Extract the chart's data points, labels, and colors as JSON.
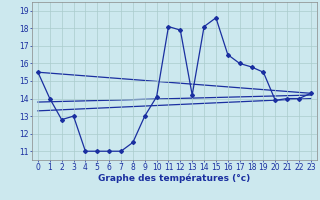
{
  "xlabel": "Graphe des températures (°c)",
  "background_color": "#cce8ee",
  "grid_color": "#aacccc",
  "line_color": "#1a2fa0",
  "xlim": [
    -0.5,
    23.5
  ],
  "ylim": [
    10.5,
    19.5
  ],
  "xticks": [
    0,
    1,
    2,
    3,
    4,
    5,
    6,
    7,
    8,
    9,
    10,
    11,
    12,
    13,
    14,
    15,
    16,
    17,
    18,
    19,
    20,
    21,
    22,
    23
  ],
  "yticks": [
    11,
    12,
    13,
    14,
    15,
    16,
    17,
    18,
    19
  ],
  "line1_x": [
    0,
    1,
    2,
    3,
    4,
    5,
    6,
    7,
    8,
    9,
    10,
    11,
    12,
    13,
    14,
    15,
    16,
    17,
    18,
    19,
    20,
    21,
    22,
    23
  ],
  "line1_y": [
    15.5,
    14.0,
    12.8,
    13.0,
    11.0,
    11.0,
    11.0,
    11.0,
    11.5,
    13.0,
    14.1,
    18.1,
    17.9,
    14.2,
    18.1,
    18.6,
    16.5,
    16.0,
    15.8,
    15.5,
    13.9,
    14.0,
    14.0,
    14.3
  ],
  "ref_lines": [
    {
      "x": [
        0,
        23
      ],
      "y": [
        15.5,
        14.3
      ]
    },
    {
      "x": [
        0,
        23
      ],
      "y": [
        13.8,
        14.2
      ]
    },
    {
      "x": [
        0,
        23
      ],
      "y": [
        13.3,
        14.0
      ]
    }
  ],
  "marker": "D",
  "markersize": 2.0,
  "linewidth": 0.9,
  "tick_fontsize": 5.5,
  "xlabel_fontsize": 6.5
}
